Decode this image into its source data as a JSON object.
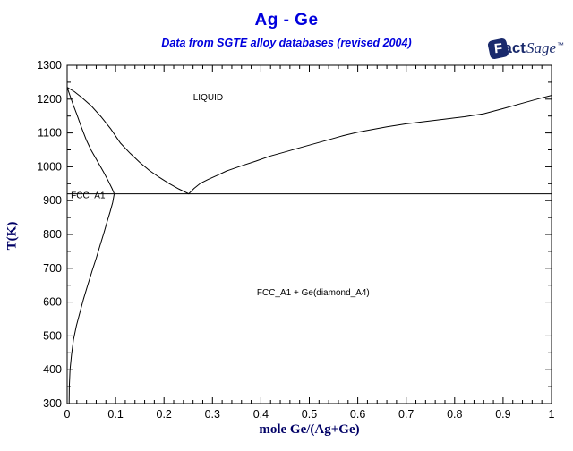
{
  "header": {
    "title": "Ag - Ge",
    "subtitle": "Data from SGTE alloy databases (revised 2004)"
  },
  "logo": {
    "f": "F",
    "act": "act",
    "sage": "Sage",
    "mark": "™"
  },
  "colors": {
    "title_blue": "#0000dd",
    "axis_label_navy": "#000066",
    "logo_navy": "#1a2a6c",
    "curve_black": "#000000",
    "background": "#ffffff"
  },
  "chart_data": {
    "type": "line",
    "title": "Ag - Ge",
    "subtitle": "Data from SGTE alloy databases (revised 2004)",
    "xlabel": "mole Ge/(Ag+Ge)",
    "ylabel": "T(K)",
    "xlim": [
      0,
      1
    ],
    "ylim": [
      300,
      1300
    ],
    "grid": false,
    "x_major_ticks": [
      0,
      0.1,
      0.2,
      0.3,
      0.4,
      0.5,
      0.6,
      0.7,
      0.8,
      0.9,
      1
    ],
    "x_tick_labels": [
      "0",
      "0.1",
      "0.2",
      "0.3",
      "0.4",
      "0.5",
      "0.6",
      "0.7",
      "0.8",
      "0.9",
      "1"
    ],
    "x_minor_step": 0.02,
    "y_major_ticks": [
      300,
      400,
      500,
      600,
      700,
      800,
      900,
      1000,
      1100,
      1200,
      1300
    ],
    "y_tick_labels": [
      "300",
      "400",
      "500",
      "600",
      "700",
      "800",
      "900",
      "1000",
      "1100",
      "1200",
      "1300"
    ],
    "y_minor_step": 50,
    "eutectic": {
      "x": 0.251,
      "T": 920
    },
    "melting_points": {
      "Ag_K": 1235,
      "Ge_K": 1211
    },
    "series": [
      {
        "name": "liquidus",
        "points": [
          [
            0,
            1235
          ],
          [
            0.015,
            1222
          ],
          [
            0.03,
            1205
          ],
          [
            0.05,
            1180
          ],
          [
            0.07,
            1148
          ],
          [
            0.09,
            1112
          ],
          [
            0.11,
            1070
          ],
          [
            0.13,
            1040
          ],
          [
            0.15,
            1013
          ],
          [
            0.17,
            989
          ],
          [
            0.19,
            969
          ],
          [
            0.21,
            951
          ],
          [
            0.23,
            935
          ],
          [
            0.251,
            920
          ],
          [
            0.262,
            936
          ],
          [
            0.275,
            951
          ],
          [
            0.29,
            962
          ],
          [
            0.31,
            975
          ],
          [
            0.33,
            988
          ],
          [
            0.36,
            1003
          ],
          [
            0.39,
            1017
          ],
          [
            0.42,
            1032
          ],
          [
            0.45,
            1044
          ],
          [
            0.48,
            1056
          ],
          [
            0.51,
            1068
          ],
          [
            0.54,
            1080
          ],
          [
            0.57,
            1092
          ],
          [
            0.6,
            1102
          ],
          [
            0.63,
            1110
          ],
          [
            0.66,
            1118
          ],
          [
            0.7,
            1127
          ],
          [
            0.74,
            1134
          ],
          [
            0.78,
            1141
          ],
          [
            0.82,
            1148
          ],
          [
            0.86,
            1157
          ],
          [
            0.9,
            1172
          ],
          [
            0.94,
            1188
          ],
          [
            0.97,
            1200
          ],
          [
            1,
            1211
          ]
        ]
      },
      {
        "name": "solidus",
        "points": [
          [
            0,
            1235
          ],
          [
            0.006,
            1210
          ],
          [
            0.012,
            1185
          ],
          [
            0.02,
            1155
          ],
          [
            0.03,
            1115
          ],
          [
            0.04,
            1078
          ],
          [
            0.05,
            1048
          ],
          [
            0.062,
            1018
          ],
          [
            0.075,
            985
          ],
          [
            0.085,
            958
          ],
          [
            0.093,
            935
          ],
          [
            0.097,
            921
          ]
        ]
      },
      {
        "name": "solvus",
        "points": [
          [
            0.097,
            919
          ],
          [
            0.094,
            895
          ],
          [
            0.089,
            868
          ],
          [
            0.083,
            840
          ],
          [
            0.076,
            805
          ],
          [
            0.068,
            768
          ],
          [
            0.06,
            730
          ],
          [
            0.051,
            690
          ],
          [
            0.042,
            648
          ],
          [
            0.034,
            610
          ],
          [
            0.026,
            568
          ],
          [
            0.019,
            530
          ],
          [
            0.013,
            488
          ],
          [
            0.009,
            445
          ],
          [
            0.006,
            400
          ],
          [
            0.0045,
            350
          ],
          [
            0.004,
            300
          ]
        ]
      },
      {
        "name": "eutectic-line",
        "points": [
          [
            0,
            920
          ],
          [
            1,
            920
          ]
        ]
      }
    ],
    "region_labels": [
      {
        "text": "LIQUID",
        "x": 0.291,
        "T": 1206,
        "anchor": "middle"
      },
      {
        "text": "FCC_A1",
        "x": 0.004,
        "T": 917,
        "anchor": "start"
      },
      {
        "text": "FCC_A1 + Ge(diamond_A4)",
        "x": 0.508,
        "T": 630,
        "anchor": "middle"
      }
    ]
  }
}
